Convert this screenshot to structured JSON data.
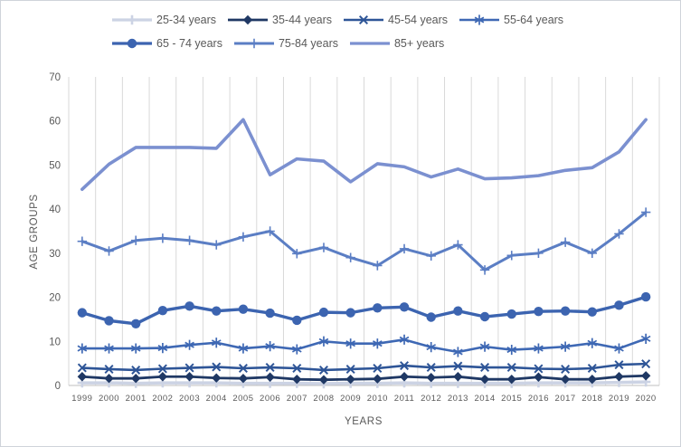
{
  "chart_data": {
    "type": "line",
    "title": "",
    "xlabel": "YEARS",
    "ylabel": "AGE GROUPS",
    "ylim": [
      0,
      70
    ],
    "yticks": [
      0,
      10,
      20,
      30,
      40,
      50,
      60,
      70
    ],
    "grid": "vertical",
    "grid_color": "#d9d9d9",
    "axis_color": "#bfbfbf",
    "tick_label_color": "#595959",
    "legend_position": "top",
    "x": [
      "1999",
      "2000",
      "2001",
      "2002",
      "2003",
      "2004",
      "2005",
      "2006",
      "2007",
      "2008",
      "2009",
      "2010",
      "2011",
      "2012",
      "2013",
      "2014",
      "2015",
      "2016",
      "2017",
      "2018",
      "2019",
      "2020"
    ],
    "series": [
      {
        "name": "25-34 years",
        "color": "#ccd3e4",
        "marker": "plus",
        "marker_width": 2.6,
        "line_width": 3.5,
        "values": [
          0.6,
          0.6,
          0.5,
          0.6,
          0.6,
          0.6,
          0.5,
          0.5,
          0.5,
          0.4,
          0.5,
          0.5,
          0.6,
          0.5,
          0.5,
          0.5,
          0.5,
          0.6,
          0.6,
          0.6,
          0.7,
          0.8
        ]
      },
      {
        "name": "35-44 years",
        "color": "#1f3864",
        "marker": "diamond",
        "marker_width": 1,
        "line_width": 2.8,
        "values": [
          2.0,
          1.6,
          1.6,
          2.0,
          2.0,
          1.7,
          1.6,
          1.9,
          1.4,
          1.3,
          1.4,
          1.5,
          2.0,
          1.8,
          2.0,
          1.4,
          1.4,
          1.9,
          1.4,
          1.4,
          2.0,
          2.2
        ]
      },
      {
        "name": "45-54 years",
        "color": "#2e5597",
        "marker": "x",
        "marker_width": 2.0,
        "line_width": 2.6,
        "values": [
          4.0,
          3.7,
          3.5,
          3.8,
          4.0,
          4.2,
          3.9,
          4.1,
          3.9,
          3.5,
          3.7,
          3.9,
          4.5,
          4.1,
          4.4,
          4.1,
          4.1,
          3.8,
          3.7,
          3.9,
          4.7,
          4.9
        ]
      },
      {
        "name": "55-64 years",
        "color": "#3e68b4",
        "marker": "star",
        "marker_width": 1.7,
        "line_width": 2.6,
        "values": [
          8.4,
          8.4,
          8.4,
          8.5,
          9.2,
          9.7,
          8.4,
          8.9,
          8.2,
          10.0,
          9.5,
          9.5,
          10.4,
          8.7,
          7.6,
          8.8,
          8.1,
          8.4,
          8.8,
          9.6,
          8.4,
          10.6
        ]
      },
      {
        "name": "65 - 74 years",
        "color": "#3c64b0",
        "marker": "circle",
        "marker_width": 1,
        "line_width": 3.4,
        "values": [
          16.5,
          14.7,
          14.0,
          17.0,
          18.0,
          16.9,
          17.3,
          16.4,
          14.8,
          16.6,
          16.5,
          17.6,
          17.8,
          15.5,
          16.9,
          15.6,
          16.2,
          16.8,
          16.9,
          16.7,
          18.2,
          20.1
        ]
      },
      {
        "name": "75-84 years",
        "color": "#5b7ec4",
        "marker": "plus",
        "marker_width": 1.6,
        "line_width": 3.0,
        "values": [
          32.7,
          30.5,
          32.9,
          33.4,
          32.9,
          31.9,
          33.7,
          35.0,
          29.9,
          31.3,
          29.0,
          27.2,
          31.0,
          29.4,
          31.9,
          26.2,
          29.5,
          30.0,
          32.5,
          30.0,
          34.4,
          39.3
        ]
      },
      {
        "name": "85+ years",
        "color": "#7b90d0",
        "marker": "none",
        "marker_width": 1,
        "line_width": 3.6,
        "values": [
          44.5,
          50.2,
          54.0,
          54.0,
          54.0,
          53.8,
          60.3,
          47.8,
          51.4,
          50.9,
          46.2,
          50.3,
          49.6,
          47.3,
          49.1,
          46.9,
          47.1,
          47.6,
          48.8,
          49.4,
          53.0,
          60.3
        ]
      }
    ]
  }
}
